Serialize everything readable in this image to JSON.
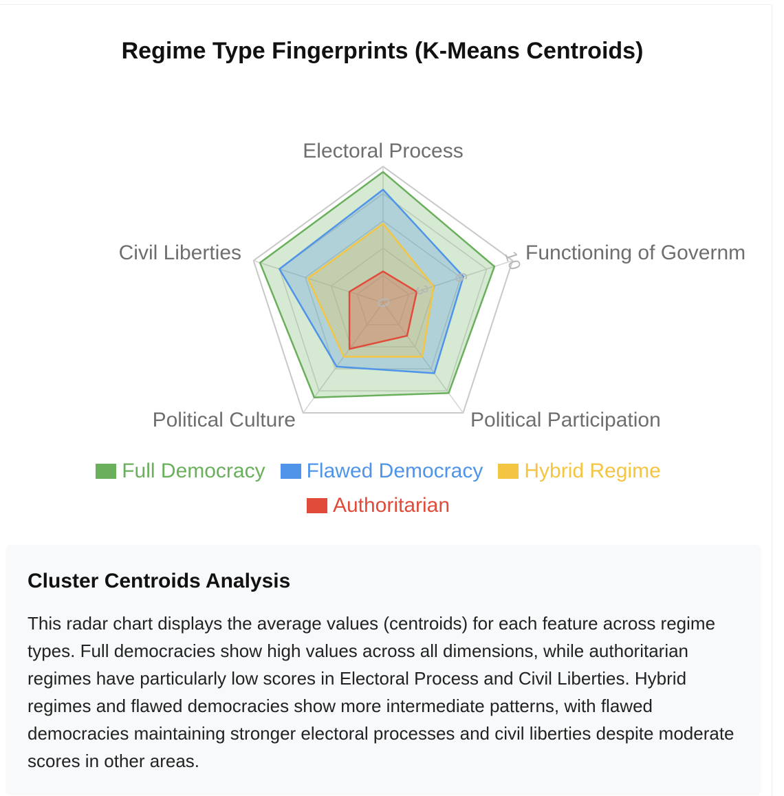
{
  "chart_data": {
    "type": "radar",
    "title": "Regime Type Fingerprints (K-Means Centroids)",
    "axes": [
      "Electoral Process",
      "Functioning of Governm",
      "Political Participation",
      "Political Culture",
      "Civil Liberties"
    ],
    "r_ticks": [
      "0",
      "3",
      "6",
      "10"
    ],
    "r_range": [
      0,
      10
    ],
    "legend_position": "bottom",
    "series": [
      {
        "name": "Full Democracy",
        "values": [
          9.6,
          8.6,
          8.2,
          8.6,
          9.5
        ],
        "color": "#6aaf5c"
      },
      {
        "name": "Flawed Democracy",
        "values": [
          8.3,
          6.2,
          6.4,
          5.8,
          8.0
        ],
        "color": "#4f94e8"
      },
      {
        "name": "Hybrid Regime",
        "values": [
          5.8,
          3.9,
          4.9,
          4.9,
          5.8
        ],
        "color": "#f4c542"
      },
      {
        "name": "Authoritarian",
        "values": [
          2.3,
          2.6,
          3.0,
          4.2,
          2.6
        ],
        "color": "#e04b3a"
      }
    ]
  },
  "analysis": {
    "heading": "Cluster Centroids Analysis",
    "body": "This radar chart displays the average values (centroids) for each feature across regime types. Full democracies show high values across all dimensions, while authoritarian regimes have particularly low scores in Electoral Process and Civil Liberties. Hybrid regimes and flawed democracies show more intermediate patterns, with flawed democracies maintaining stronger electoral processes and civil liberties despite moderate scores in other areas."
  }
}
